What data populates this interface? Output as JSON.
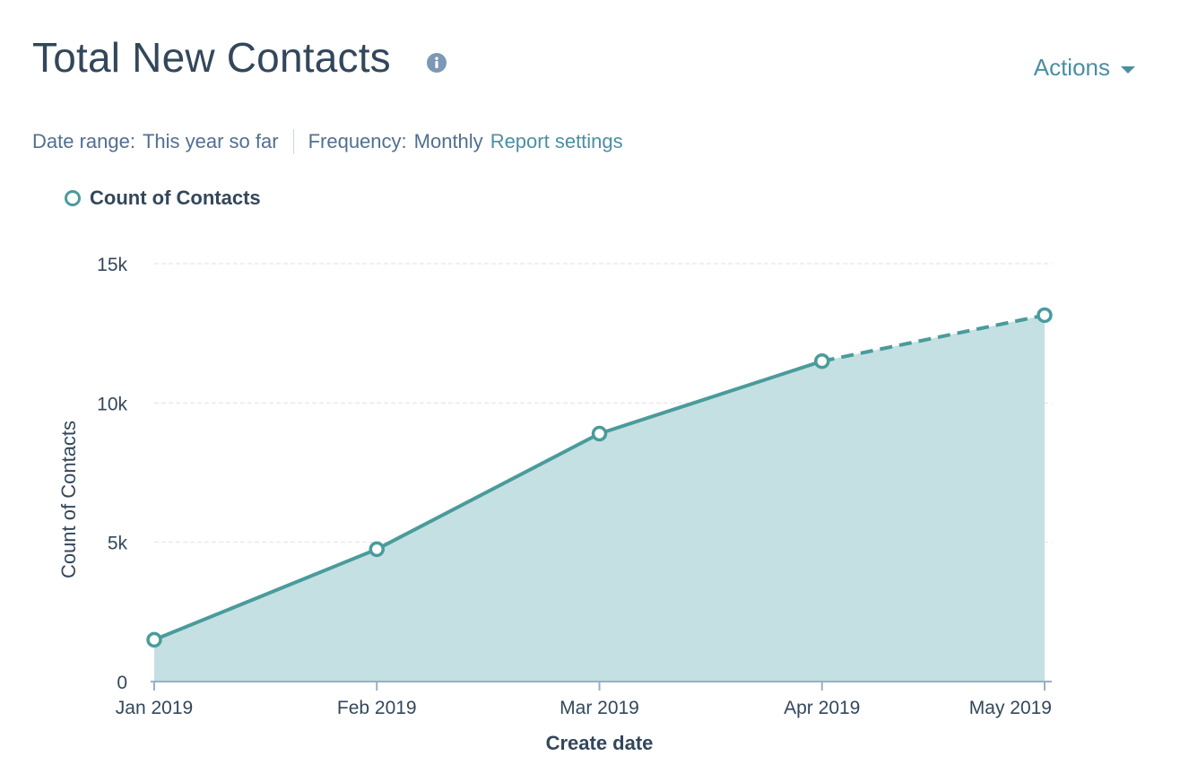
{
  "header": {
    "title": "Total New Contacts",
    "actions_label": "Actions"
  },
  "filters": {
    "date_range_label": "Date range:",
    "date_range_value": "This year so far",
    "frequency_label": "Frequency:",
    "frequency_value": "Monthly",
    "settings_link": "Report settings"
  },
  "colors": {
    "series": "#4a9b9c",
    "fill": "#c5e0e2",
    "accent": "#4a8fa3"
  },
  "chart_data": {
    "type": "area",
    "title": "Total New Contacts",
    "xlabel": "Create date",
    "ylabel": "Count of Contacts",
    "categories": [
      "Jan 2019",
      "Feb 2019",
      "Mar 2019",
      "Apr 2019",
      "May 2019"
    ],
    "ylim": [
      0,
      15000
    ],
    "y_ticks": [
      0,
      5000,
      10000,
      15000
    ],
    "y_tick_labels": [
      "0",
      "5k",
      "10k",
      "15k"
    ],
    "grid": true,
    "legend": "top-left",
    "series": [
      {
        "name": "Count of Contacts",
        "values": [
          1500,
          4750,
          8900,
          11500,
          13150
        ],
        "projected_from_index": 3
      }
    ]
  }
}
